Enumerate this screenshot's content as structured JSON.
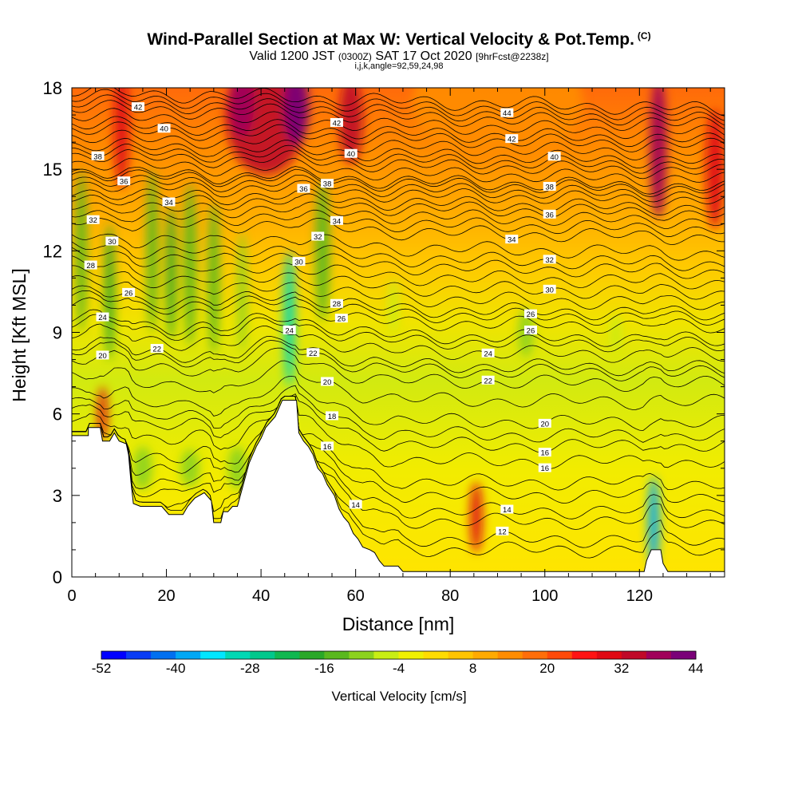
{
  "header": {
    "title": "Wind-Parallel Section at Max W: Vertical Velocity & Pot.Temp.",
    "title_mark": "(C)",
    "subtitle_a": "Valid 1200 JST",
    "subtitle_utc": "(0300Z)",
    "subtitle_b": "SAT 17 Oct 2020",
    "subtitle_fcst": "[9hrFcst@2238z]",
    "subtitle2": "i,j,k,angle=92,59,24,98"
  },
  "chart_data": {
    "type": "heatmap",
    "xlabel": "Distance [nm]",
    "ylabel": "Height [Kft MSL]",
    "xlim": [
      0,
      138
    ],
    "ylim": [
      0,
      18
    ],
    "xticks": [
      0,
      20,
      40,
      60,
      80,
      100,
      120
    ],
    "yticks": [
      0,
      3,
      6,
      9,
      12,
      15,
      18
    ],
    "terrain_kft": [
      [
        0,
        5.2
      ],
      [
        3.5,
        5.2
      ],
      [
        3.5,
        5.5
      ],
      [
        6,
        5.5
      ],
      [
        6.5,
        5.0
      ],
      [
        8,
        5.0
      ],
      [
        9,
        5.3
      ],
      [
        10,
        5.0
      ],
      [
        11.5,
        4.9
      ],
      [
        12,
        4.5
      ],
      [
        12.5,
        3.5
      ],
      [
        13,
        2.7
      ],
      [
        14.5,
        2.6
      ],
      [
        17,
        2.6
      ],
      [
        18,
        2.6
      ],
      [
        19,
        2.6
      ],
      [
        20.5,
        2.3
      ],
      [
        23.5,
        2.3
      ],
      [
        24.5,
        2.6
      ],
      [
        26,
        2.9
      ],
      [
        28,
        3.1
      ],
      [
        29.5,
        2.8
      ],
      [
        30,
        2.0
      ],
      [
        31.5,
        2.0
      ],
      [
        32,
        2.4
      ],
      [
        33,
        2.4
      ],
      [
        34,
        2.6
      ],
      [
        35,
        2.6
      ],
      [
        37.5,
        4.2
      ],
      [
        39,
        4.8
      ],
      [
        40,
        5.1
      ],
      [
        41,
        5.5
      ],
      [
        43,
        5.9
      ],
      [
        44.5,
        6.5
      ],
      [
        47.5,
        6.5
      ],
      [
        48,
        5.3
      ],
      [
        49,
        5.0
      ],
      [
        50,
        4.8
      ],
      [
        51,
        4.5
      ],
      [
        52,
        4.0
      ],
      [
        53,
        3.8
      ],
      [
        54,
        3.4
      ],
      [
        55.5,
        3.0
      ],
      [
        56.5,
        2.5
      ],
      [
        57.5,
        2.2
      ],
      [
        58.5,
        2.0
      ],
      [
        59.5,
        1.6
      ],
      [
        60.5,
        1.4
      ],
      [
        61.5,
        1.1
      ],
      [
        63,
        1.0
      ],
      [
        64,
        0.9
      ],
      [
        65,
        0.6
      ],
      [
        66,
        0.4
      ],
      [
        69,
        0.4
      ],
      [
        70,
        0.2
      ],
      [
        78,
        0.2
      ],
      [
        110,
        0.2
      ],
      [
        121,
        0.2
      ],
      [
        121.5,
        0.6
      ],
      [
        122.5,
        1.0
      ],
      [
        124.5,
        1.0
      ],
      [
        125,
        0.5
      ],
      [
        126,
        0.2
      ],
      [
        138,
        0.2
      ]
    ],
    "theta_contours": [
      {
        "label": "12",
        "base": 1.3,
        "lx": 91
      },
      {
        "label": "14",
        "base": 2.0,
        "lx": 60
      },
      {
        "label": "14",
        "base": 2.4,
        "lx": 92
      },
      {
        "label": "16",
        "base": 3.5,
        "lx": 54
      },
      {
        "label": "16",
        "base": 4.3,
        "lx": 100
      },
      {
        "label": "18",
        "base": 5.3,
        "lx": 55
      },
      {
        "label": "16",
        "base": 4.9,
        "lx": 100
      },
      {
        "label": "20",
        "base": 6.6,
        "lx": 54
      },
      {
        "label": "20",
        "base": 5.8,
        "lx": 100
      },
      {
        "label": "20",
        "base": 7.3,
        "lx": 6.5
      },
      {
        "label": "22",
        "base": 7.9,
        "lx": 18
      },
      {
        "label": "22",
        "base": 7.7,
        "lx": 51
      },
      {
        "label": "22",
        "base": 7.3,
        "lx": 88
      },
      {
        "label": "24",
        "base": 8.8,
        "lx": 6.5
      },
      {
        "label": "24",
        "base": 8.6,
        "lx": 46
      },
      {
        "label": "24",
        "base": 8.4,
        "lx": 88
      },
      {
        "label": "26",
        "base": 10.0,
        "lx": 12
      },
      {
        "label": "26",
        "base": 9.5,
        "lx": 57
      },
      {
        "label": "26",
        "base": 9.0,
        "lx": 97
      },
      {
        "label": "26",
        "base": 9.8,
        "lx": 97
      },
      {
        "label": "28",
        "base": 11.2,
        "lx": 4
      },
      {
        "label": "28",
        "base": 10.0,
        "lx": 56
      },
      {
        "label": "30",
        "base": 12.0,
        "lx": 8.5
      },
      {
        "label": "30",
        "base": 11.6,
        "lx": 48
      },
      {
        "label": "30",
        "base": 10.8,
        "lx": 101
      },
      {
        "label": "32",
        "base": 12.9,
        "lx": 4.5
      },
      {
        "label": "32",
        "base": 12.3,
        "lx": 52
      },
      {
        "label": "32",
        "base": 11.9,
        "lx": 101
      },
      {
        "label": "34",
        "base": 13.8,
        "lx": 20.5
      },
      {
        "label": "34",
        "base": 13.2,
        "lx": 56
      },
      {
        "label": "34",
        "base": 12.9,
        "lx": 93
      },
      {
        "label": "36",
        "base": 14.5,
        "lx": 11
      },
      {
        "label": "36",
        "base": 14.0,
        "lx": 49
      },
      {
        "label": "36",
        "base": 13.9,
        "lx": 101
      },
      {
        "label": "38",
        "base": 15.6,
        "lx": 5.5
      },
      {
        "label": "38",
        "base": 14.7,
        "lx": 54
      },
      {
        "label": "38",
        "base": 14.8,
        "lx": 101
      },
      {
        "label": "40",
        "base": 16.4,
        "lx": 19.5
      },
      {
        "label": "40",
        "base": 15.8,
        "lx": 59
      },
      {
        "label": "40",
        "base": 15.6,
        "lx": 102
      },
      {
        "label": "42",
        "base": 17.4,
        "lx": 14
      },
      {
        "label": "42",
        "base": 16.9,
        "lx": 56
      },
      {
        "label": "42",
        "base": 16.6,
        "lx": 93
      },
      {
        "label": "44",
        "base": 17.6,
        "lx": 92
      }
    ],
    "updraft_cells": [
      {
        "x": 10.5,
        "y": 16.5,
        "sx": 1.6,
        "sy": 2.2,
        "w": 30
      },
      {
        "x": 41,
        "y": 17.0,
        "sx": 8.5,
        "sy": 2.2,
        "w": 35
      },
      {
        "x": 47.5,
        "y": 17.3,
        "sx": 2.6,
        "sy": 1.4,
        "w": 44
      },
      {
        "x": 36,
        "y": 17.5,
        "sx": 2.5,
        "sy": 1.3,
        "w": 36
      },
      {
        "x": 59,
        "y": 16.8,
        "sx": 2.5,
        "sy": 1.6,
        "w": 34
      },
      {
        "x": 124,
        "y": 15.8,
        "sx": 1.8,
        "sy": 2.6,
        "w": 38
      },
      {
        "x": 136,
        "y": 15.0,
        "sx": 2.0,
        "sy": 2.2,
        "w": 28
      },
      {
        "x": 85.5,
        "y": 2.2,
        "sx": 1.3,
        "sy": 1.3,
        "w": 30
      },
      {
        "x": 6.5,
        "y": 6.0,
        "sx": 1.0,
        "sy": 1.0,
        "w": 28
      },
      {
        "x": 90,
        "y": 17.5,
        "sx": 18,
        "sy": 2.2,
        "w": 12
      }
    ],
    "downdraft_cells": [
      {
        "x": 2,
        "y": 12.0,
        "sx": 1.2,
        "sy": 3.0,
        "w": -16
      },
      {
        "x": 8,
        "y": 10.5,
        "sx": 1.0,
        "sy": 2.5,
        "w": -18
      },
      {
        "x": 17,
        "y": 12.0,
        "sx": 1.2,
        "sy": 3.0,
        "w": -16
      },
      {
        "x": 21,
        "y": 11.2,
        "sx": 1.0,
        "sy": 2.5,
        "w": -18
      },
      {
        "x": 25,
        "y": 11.5,
        "sx": 1.3,
        "sy": 3.0,
        "w": -16
      },
      {
        "x": 30,
        "y": 11.0,
        "sx": 1.2,
        "sy": 2.8,
        "w": -14
      },
      {
        "x": 36,
        "y": 10.5,
        "sx": 1.0,
        "sy": 2.2,
        "w": -12
      },
      {
        "x": 46,
        "y": 9.5,
        "sx": 1.2,
        "sy": 2.5,
        "w": -30
      },
      {
        "x": 53,
        "y": 12.0,
        "sx": 1.5,
        "sy": 2.6,
        "w": -16
      },
      {
        "x": 68,
        "y": 10.0,
        "sx": 1.0,
        "sy": 1.0,
        "w": -8
      },
      {
        "x": 96,
        "y": 9.0,
        "sx": 1.6,
        "sy": 0.9,
        "w": -10
      },
      {
        "x": 115,
        "y": 9.0,
        "sx": 1.0,
        "sy": 0.7,
        "w": -8
      },
      {
        "x": 123,
        "y": 2.0,
        "sx": 1.2,
        "sy": 1.7,
        "w": -40
      },
      {
        "x": 15,
        "y": 4.0,
        "sx": 2.0,
        "sy": 0.8,
        "w": -10
      },
      {
        "x": 25,
        "y": 4.0,
        "sx": 2.0,
        "sy": 0.7,
        "w": -10
      },
      {
        "x": 35,
        "y": 4.0,
        "sx": 2.0,
        "sy": 0.8,
        "w": -10
      }
    ],
    "colorbar": {
      "label": "Vertical Velocity [cm/s]",
      "levels": [
        -52,
        -48,
        -44,
        -40,
        -36,
        -32,
        -28,
        -24,
        -20,
        -16,
        -12,
        -8,
        -4,
        0,
        4,
        8,
        12,
        16,
        20,
        24,
        28,
        32,
        36,
        40,
        44
      ],
      "tick_labels": [
        "-52",
        "-40",
        "-28",
        "-16",
        "-4",
        "8",
        "20",
        "32",
        "44"
      ],
      "colors": [
        "#0000ff",
        "#0a3cf5",
        "#0070f0",
        "#00a8f5",
        "#00e6ff",
        "#00d8b4",
        "#00c88c",
        "#10b850",
        "#2aa828",
        "#5ab81e",
        "#8cd21e",
        "#c8ee14",
        "#f0f000",
        "#ffdc00",
        "#ffc400",
        "#ffaa00",
        "#ff8c00",
        "#ff6e0a",
        "#ff4a0a",
        "#ff1414",
        "#e00a14",
        "#c00a28",
        "#a0005a",
        "#7a0078"
      ]
    }
  }
}
